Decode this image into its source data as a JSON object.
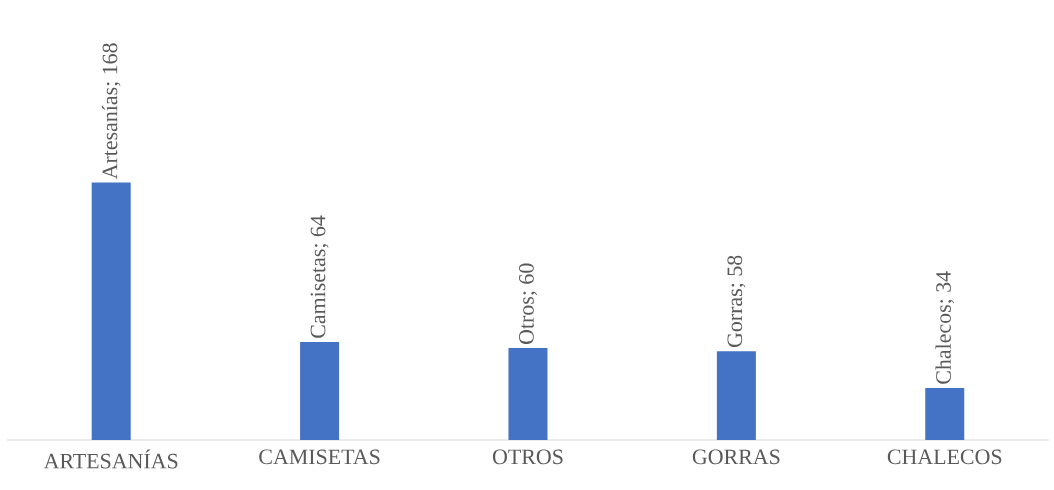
{
  "chart_data": {
    "type": "bar",
    "categories": [
      "ARTESANÍAS",
      "CAMISETAS",
      "OTROS",
      "GORRAS",
      "CHALECOS"
    ],
    "values": [
      168,
      64,
      60,
      58,
      34
    ],
    "color": "#4472c4",
    "value_labels": [
      "Artesanías; 168",
      "Camisetas; 64",
      "Otros; 60",
      "Gorras; 58",
      "Chalecos; 34"
    ]
  }
}
